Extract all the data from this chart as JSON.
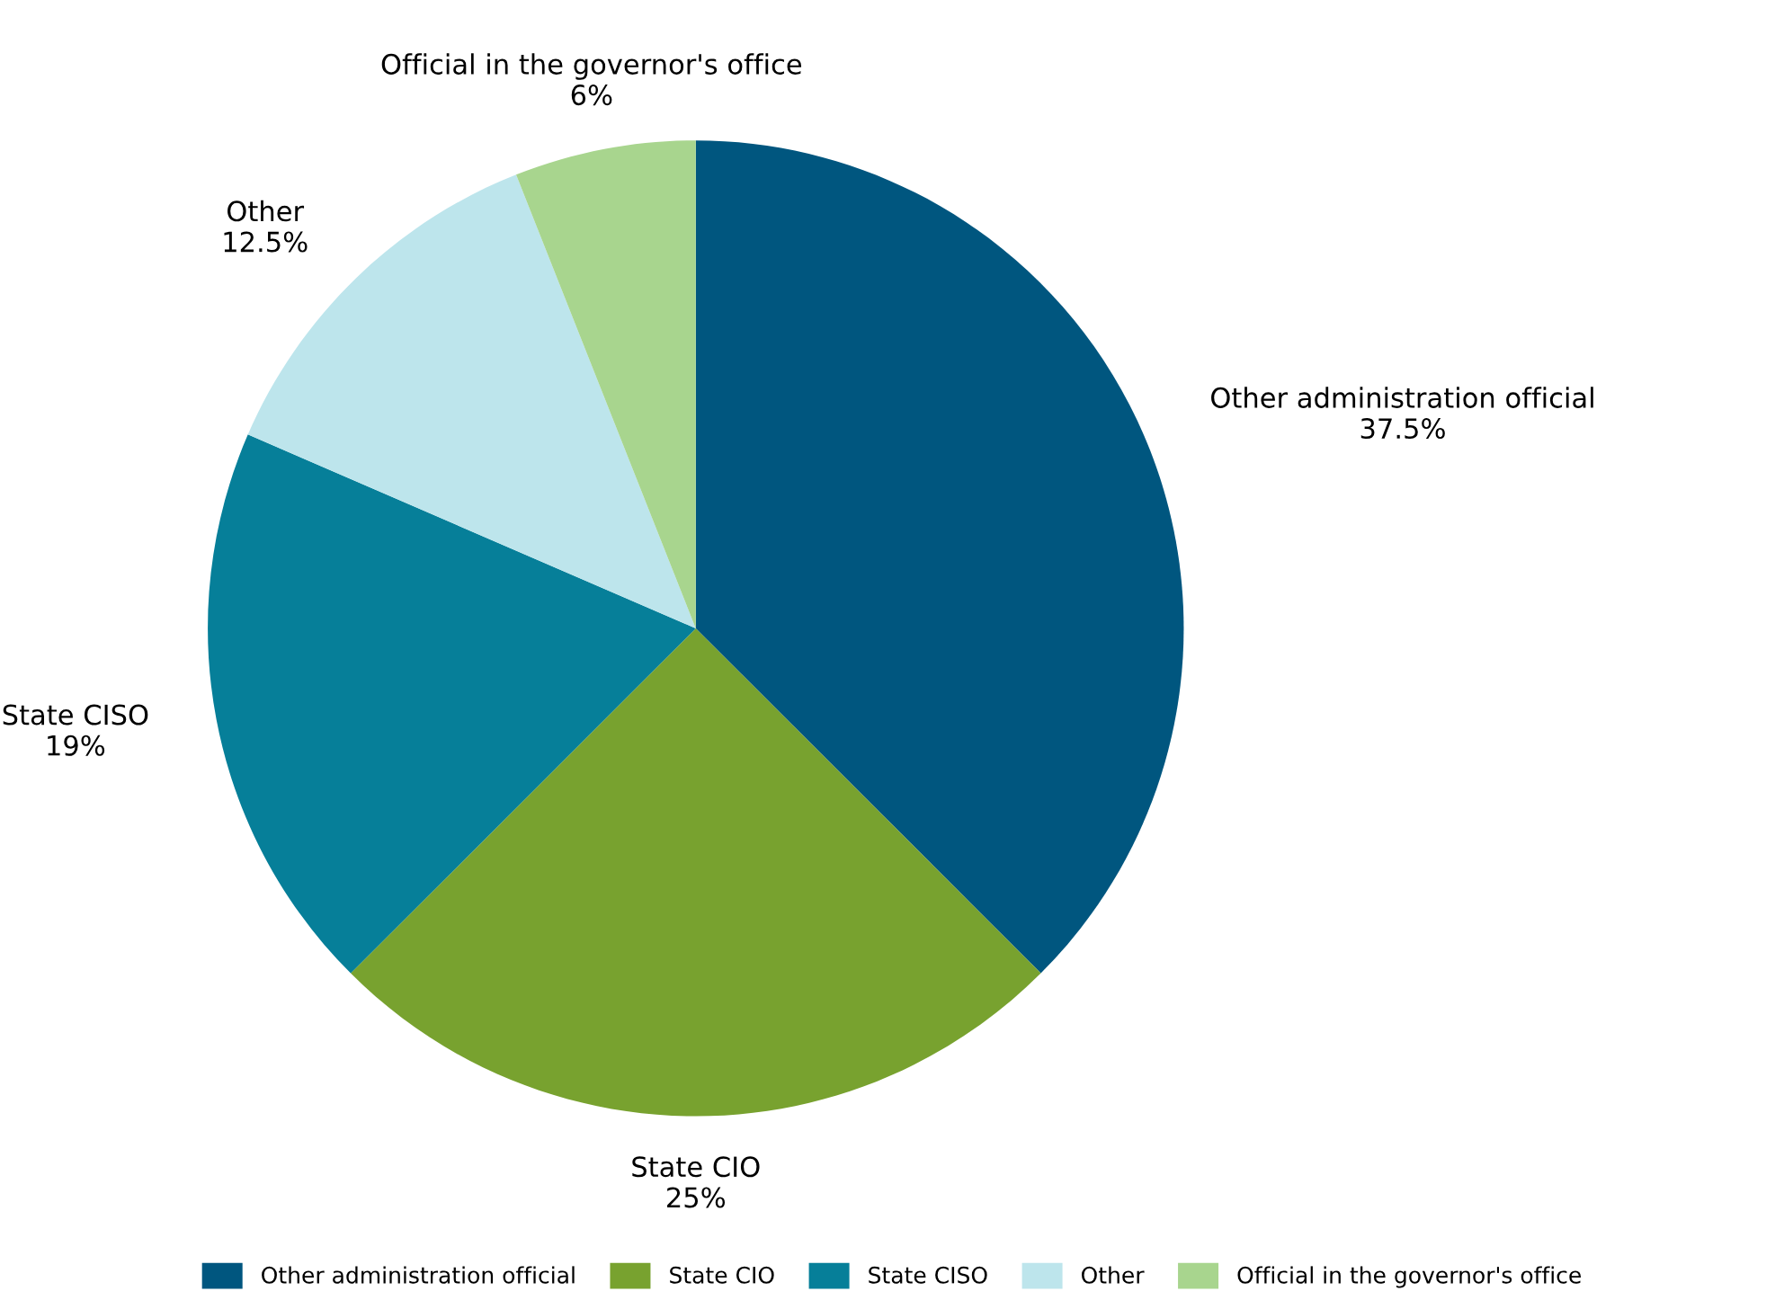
{
  "chart_data": {
    "type": "pie",
    "categories": [
      "Other administration official",
      "State CIO",
      "State CISO",
      "Other",
      "Official in the governor's office"
    ],
    "values": [
      37.5,
      25,
      19,
      12.5,
      6
    ],
    "colors": [
      "#00567f",
      "#78a22f",
      "#067f99",
      "#bde5ec",
      "#a8d58e"
    ],
    "value_labels": [
      "37.5%",
      "25%",
      "19%",
      "12.5%",
      "6%"
    ],
    "legend": "bottom"
  }
}
